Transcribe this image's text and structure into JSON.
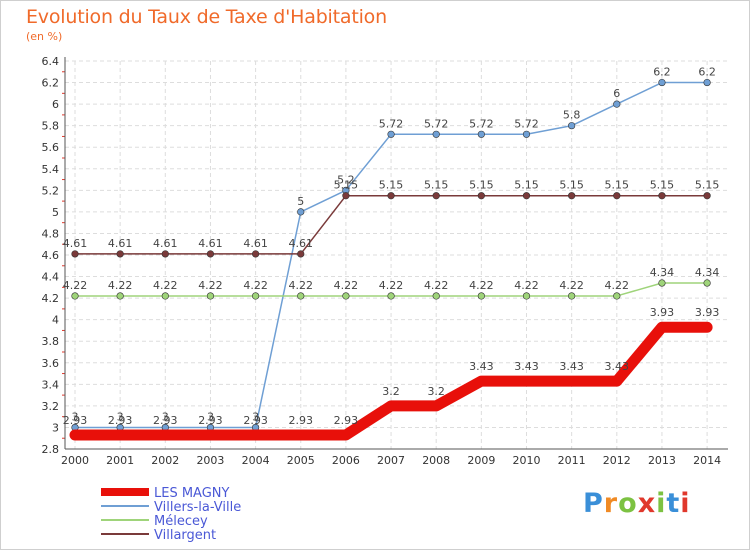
{
  "header": {
    "title": "Evolution du Taux de Taxe d'Habitation",
    "subtitle": "(en %)"
  },
  "logo": {
    "letters": [
      "P",
      "r",
      "o",
      "x",
      "i",
      "t",
      "i"
    ],
    "colors": [
      "#3a8fd8",
      "#f08a24",
      "#7cc242",
      "#e0382c",
      "#7cc242",
      "#3a8fd8",
      "#e0382c"
    ]
  },
  "chart_data": {
    "type": "line",
    "title": "Evolution du Taux de Taxe d'Habitation",
    "ylabel": "(en %)",
    "x": [
      "2000",
      "2001",
      "2002",
      "2003",
      "2004",
      "2005",
      "2006",
      "2007",
      "2008",
      "2009",
      "2010",
      "2011",
      "2012",
      "2013",
      "2014"
    ],
    "ylim": [
      2.8,
      6.4
    ],
    "yticks": [
      "2.8",
      "3",
      "3.2",
      "3.4",
      "3.6",
      "3.8",
      "4",
      "4.2",
      "4.4",
      "4.6",
      "4.8",
      "5",
      "5.2",
      "5.4",
      "5.6",
      "5.8",
      "6",
      "6.2",
      "6.4"
    ],
    "grid": true,
    "legend_position": "bottom-left",
    "series": [
      {
        "name": "LES MAGNY",
        "color": "#e8100a",
        "values": [
          2.93,
          2.93,
          2.93,
          2.93,
          2.93,
          2.93,
          2.93,
          3.2,
          3.2,
          3.43,
          3.43,
          3.43,
          3.43,
          3.93,
          3.93
        ],
        "labels": [
          "2.93",
          "2.93",
          "2.93",
          "2.93",
          "2.93",
          "2.93",
          "2.93",
          "3.2",
          "3.2",
          "3.43",
          "3.43",
          "3.43",
          "3.43",
          "3.93",
          "3.93"
        ]
      },
      {
        "name": "Villers-la-Ville",
        "color": "#6f9fd4",
        "values": [
          3,
          3,
          3,
          3,
          3,
          5,
          5.2,
          5.72,
          5.72,
          5.72,
          5.72,
          5.8,
          6,
          6.2,
          6.2
        ],
        "labels": [
          "3",
          "3",
          "3",
          "3",
          "3",
          "5",
          "5.2",
          "5.72",
          "5.72",
          "5.72",
          "5.72",
          "5.8",
          "6",
          "6.2",
          "6.2"
        ]
      },
      {
        "name": "Mélecey",
        "color": "#9fd47a",
        "values": [
          4.22,
          4.22,
          4.22,
          4.22,
          4.22,
          4.22,
          4.22,
          4.22,
          4.22,
          4.22,
          4.22,
          4.22,
          4.22,
          4.34,
          4.34
        ],
        "labels": [
          "4.22",
          "4.22",
          "4.22",
          "4.22",
          "4.22",
          "4.22",
          "4.22",
          "4.22",
          "4.22",
          "4.22",
          "4.22",
          "4.22",
          "4.22",
          "4.34",
          "4.34"
        ]
      },
      {
        "name": "Villargent",
        "color": "#7a3a3a",
        "values": [
          4.61,
          4.61,
          4.61,
          4.61,
          4.61,
          4.61,
          5.15,
          5.15,
          5.15,
          5.15,
          5.15,
          5.15,
          5.15,
          5.15,
          5.15
        ],
        "labels": [
          "4.61",
          "4.61",
          "4.61",
          "4.61",
          "4.61",
          "4.61",
          "5.15",
          "5.15",
          "5.15",
          "5.15",
          "5.15",
          "5.15",
          "5.15",
          "5.15",
          "5.15"
        ]
      }
    ]
  }
}
